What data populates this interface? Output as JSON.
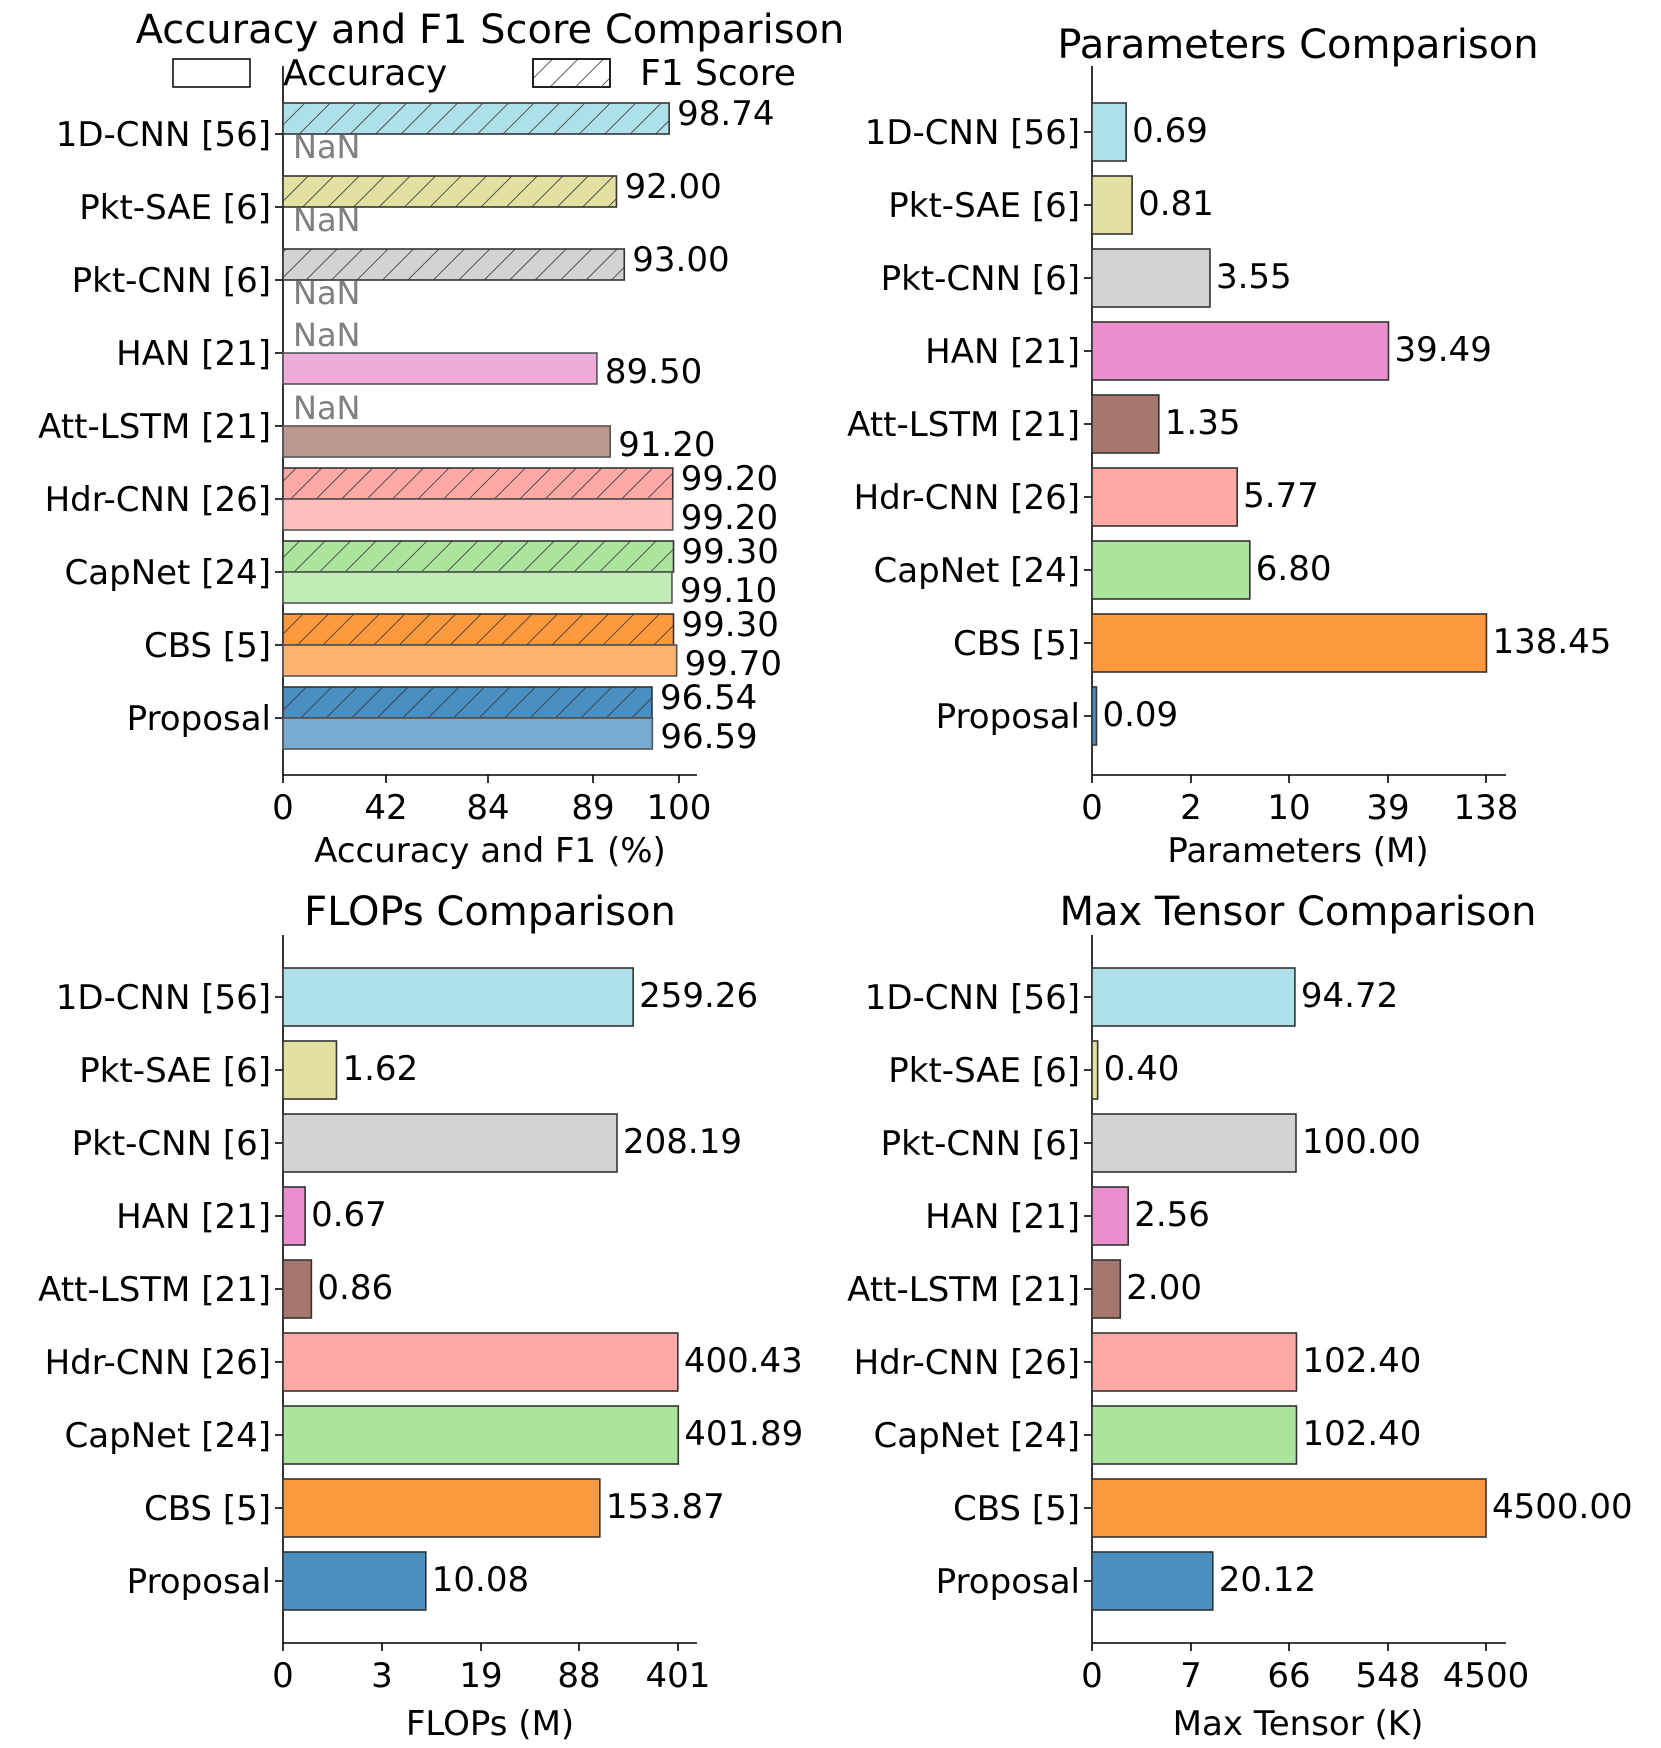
{
  "colors": {
    "1D-CNN [56]": "#aee0ea",
    "Pkt-SAE [6]": "#e2e1a2",
    "Pkt-CNN [6]": "#d3d3d3",
    "HAN [21]": "#e98fcc",
    "Att-LSTM [21]": "#a7766c",
    "Hdr-CNN [26]": "#fdaaa6",
    "CapNet [24]": "#abe59d",
    "CBS [5]": "#fd993e",
    "Proposal": "#4a8fc2",
    "nan_text": "#808080"
  },
  "chart_data": [
    {
      "type": "bar",
      "orientation": "horizontal",
      "title": "Accuracy and F1 Score Comparison",
      "xlabel": "Accuracy and F1 (%)",
      "x_scale": "nonlinear",
      "xticks": [
        "0",
        "42",
        "84",
        "89",
        "100"
      ],
      "legend": {
        "placement": "top",
        "entries": [
          "Accuracy",
          "F1 Score"
        ]
      },
      "categories": [
        "1D-CNN [56]",
        "Pkt-SAE [6]",
        "Pkt-CNN [6]",
        "HAN [21]",
        "Att-LSTM [21]",
        "Hdr-CNN [26]",
        "CapNet [24]",
        "CBS [5]",
        "Proposal"
      ],
      "series": [
        {
          "name": "F1 Score",
          "hatch": "diagonal",
          "values": [
            98.74,
            92.0,
            93.0,
            null,
            null,
            99.2,
            99.3,
            99.3,
            96.54
          ],
          "labels": [
            "98.74",
            "92.00",
            "93.00",
            "NaN",
            "NaN",
            "99.20",
            "99.30",
            "99.30",
            "96.54"
          ]
        },
        {
          "name": "Accuracy",
          "hatch": "none",
          "values": [
            null,
            null,
            null,
            89.5,
            91.2,
            99.2,
            99.1,
            99.7,
            96.59
          ],
          "labels": [
            "NaN",
            "NaN",
            "NaN",
            "89.50",
            "91.20",
            "99.20",
            "99.10",
            "99.70",
            "96.59"
          ]
        }
      ]
    },
    {
      "type": "bar",
      "orientation": "horizontal",
      "title": "Parameters Comparison",
      "xlabel": "Parameters (M)",
      "x_scale": "nonlinear",
      "xticks": [
        "0",
        "2",
        "10",
        "39",
        "138"
      ],
      "categories": [
        "1D-CNN [56]",
        "Pkt-SAE [6]",
        "Pkt-CNN [6]",
        "HAN [21]",
        "Att-LSTM [21]",
        "Hdr-CNN [26]",
        "CapNet [24]",
        "CBS [5]",
        "Proposal"
      ],
      "values": [
        0.69,
        0.81,
        3.55,
        39.49,
        1.35,
        5.77,
        6.8,
        138.45,
        0.09
      ],
      "labels": [
        "0.69",
        "0.81",
        "3.55",
        "39.49",
        "1.35",
        "5.77",
        "6.80",
        "138.45",
        "0.09"
      ]
    },
    {
      "type": "bar",
      "orientation": "horizontal",
      "title": "FLOPs Comparison",
      "xlabel": "FLOPs (M)",
      "x_scale": "nonlinear",
      "xticks": [
        "0",
        "3",
        "19",
        "88",
        "401"
      ],
      "categories": [
        "1D-CNN [56]",
        "Pkt-SAE [6]",
        "Pkt-CNN [6]",
        "HAN [21]",
        "Att-LSTM [21]",
        "Hdr-CNN [26]",
        "CapNet [24]",
        "CBS [5]",
        "Proposal"
      ],
      "values": [
        259.26,
        1.62,
        208.19,
        0.67,
        0.86,
        400.43,
        401.89,
        153.87,
        10.08
      ],
      "labels": [
        "259.26",
        "1.62",
        "208.19",
        "0.67",
        "0.86",
        "400.43",
        "401.89",
        "153.87",
        "10.08"
      ]
    },
    {
      "type": "bar",
      "orientation": "horizontal",
      "title": "Max Tensor Comparison",
      "xlabel": "Max Tensor (K)",
      "x_scale": "nonlinear",
      "xticks": [
        "0",
        "7",
        "66",
        "548",
        "4500"
      ],
      "categories": [
        "1D-CNN [56]",
        "Pkt-SAE [6]",
        "Pkt-CNN [6]",
        "HAN [21]",
        "Att-LSTM [21]",
        "Hdr-CNN [26]",
        "CapNet [24]",
        "CBS [5]",
        "Proposal"
      ],
      "values": [
        94.72,
        0.4,
        100.0,
        2.56,
        2.0,
        102.4,
        102.4,
        4500.0,
        20.12
      ],
      "labels": [
        "94.72",
        "0.40",
        "100.00",
        "2.56",
        "2.00",
        "102.40",
        "102.40",
        "4500.00",
        "20.12"
      ]
    }
  ]
}
